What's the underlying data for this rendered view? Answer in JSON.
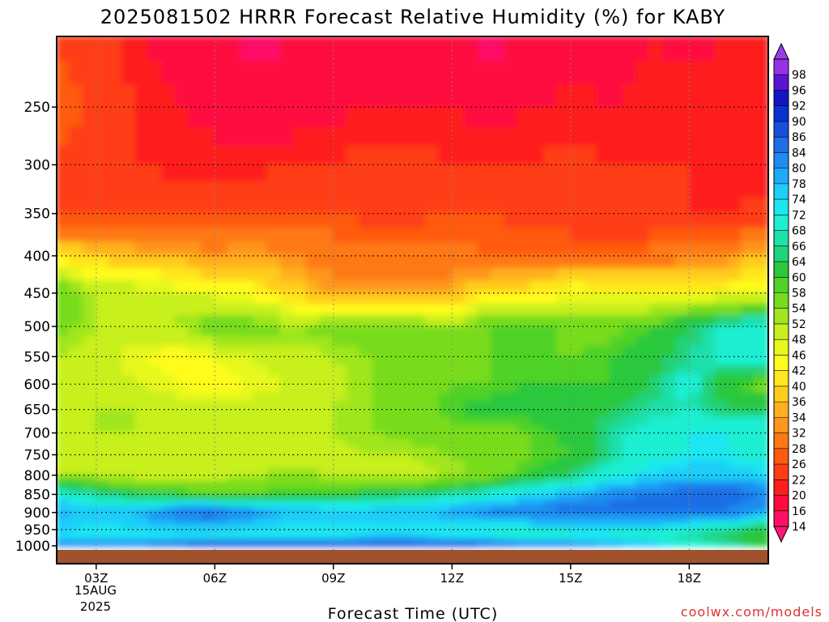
{
  "chart_data": {
    "type": "heatmap",
    "title": "2025081502 HRRR Forecast Relative Humidity (%) for KABY",
    "xlabel": "Forecast Time (UTC)",
    "ylabel": "",
    "x_ticks": [
      "03Z",
      "06Z",
      "09Z",
      "12Z",
      "15Z",
      "18Z"
    ],
    "x_hours": [
      3,
      6,
      9,
      12,
      15,
      18
    ],
    "x_range_hours": [
      2,
      20
    ],
    "date_label": [
      "15AUG",
      "2025"
    ],
    "y_ticks": [
      250,
      300,
      350,
      400,
      450,
      500,
      550,
      600,
      650,
      700,
      750,
      800,
      850,
      900,
      950,
      1000
    ],
    "y_range_hPa": [
      200,
      1013
    ],
    "y_scale": "log-pressure",
    "grid": true,
    "colorbar": {
      "levels": [
        14,
        16,
        20,
        22,
        26,
        28,
        32,
        34,
        36,
        40,
        42,
        46,
        48,
        52,
        54,
        58,
        60,
        64,
        66,
        68,
        72,
        74,
        78,
        80,
        84,
        86,
        90,
        92,
        96,
        98
      ],
      "colors": [
        "#ff1066",
        "#ff0b3f",
        "#ff1e1e",
        "#ff3c14",
        "#ff5a10",
        "#ff7814",
        "#ff961e",
        "#ffb01e",
        "#ffcc1e",
        "#ffe61e",
        "#fffc1e",
        "#e6f81e",
        "#c8f01e",
        "#a0e61e",
        "#78dc1e",
        "#50d228",
        "#2cc83c",
        "#20d278",
        "#1ee0aa",
        "#1eeed2",
        "#1ee6f0",
        "#1ecdf8",
        "#1eaaf8",
        "#1e8cf0",
        "#1e6ee6",
        "#1450dc",
        "#0a32d2",
        "#1414c8",
        "#5a14d2",
        "#9632e6"
      ]
    },
    "rows": [
      {
        "p": 200,
        "values": [
          26,
          24,
          20,
          18,
          16,
          15,
          16,
          16,
          18,
          17,
          16,
          15,
          16,
          17,
          18,
          20,
          19,
          20,
          21
        ]
      },
      {
        "p": 250,
        "values": [
          28,
          25,
          22,
          20,
          19,
          18,
          18,
          19,
          20,
          20,
          20,
          19,
          20,
          21,
          20,
          21,
          22,
          21,
          22
        ]
      },
      {
        "p": 300,
        "values": [
          26,
          23,
          22,
          21,
          21,
          21,
          22,
          22,
          23,
          23,
          22,
          22,
          22,
          23,
          22,
          22,
          22,
          21,
          21
        ]
      },
      {
        "p": 350,
        "values": [
          24,
          24,
          25,
          25,
          25,
          26,
          26,
          26,
          25,
          25,
          26,
          26,
          25,
          24,
          23,
          23,
          22,
          22,
          23
        ]
      },
      {
        "p": 400,
        "values": [
          40,
          38,
          36,
          34,
          33,
          34,
          32,
          30,
          30,
          29,
          29,
          28,
          28,
          28,
          28,
          29,
          30,
          32,
          36
        ]
      },
      {
        "p": 450,
        "values": [
          58,
          52,
          50,
          48,
          46,
          44,
          38,
          33,
          34,
          34,
          35,
          40,
          42,
          45,
          44,
          44,
          44,
          44,
          48
        ]
      },
      {
        "p": 500,
        "values": [
          56,
          52,
          52,
          52,
          58,
          56,
          54,
          56,
          58,
          56,
          54,
          58,
          60,
          56,
          56,
          60,
          64,
          70,
          70
        ]
      },
      {
        "p": 550,
        "values": [
          52,
          50,
          46,
          44,
          46,
          48,
          50,
          52,
          54,
          54,
          56,
          58,
          58,
          58,
          60,
          62,
          66,
          70,
          72
        ]
      },
      {
        "p": 600,
        "values": [
          48,
          50,
          48,
          46,
          44,
          46,
          48,
          50,
          54,
          56,
          58,
          58,
          60,
          60,
          60,
          64,
          70,
          60,
          56
        ]
      },
      {
        "p": 650,
        "values": [
          50,
          52,
          52,
          50,
          50,
          50,
          50,
          52,
          54,
          56,
          60,
          62,
          62,
          62,
          64,
          66,
          68,
          64,
          64
        ]
      },
      {
        "p": 700,
        "values": [
          50,
          52,
          52,
          50,
          48,
          48,
          50,
          52,
          54,
          56,
          56,
          56,
          58,
          62,
          66,
          70,
          72,
          72,
          72
        ]
      },
      {
        "p": 750,
        "values": [
          50,
          50,
          48,
          48,
          48,
          48,
          48,
          50,
          52,
          52,
          54,
          56,
          58,
          60,
          66,
          70,
          72,
          72,
          70
        ]
      },
      {
        "p": 800,
        "values": [
          52,
          52,
          50,
          50,
          50,
          52,
          54,
          52,
          52,
          50,
          52,
          56,
          60,
          64,
          70,
          74,
          76,
          76,
          74
        ]
      },
      {
        "p": 850,
        "values": [
          70,
          66,
          62,
          60,
          58,
          58,
          60,
          60,
          62,
          64,
          66,
          70,
          74,
          78,
          82,
          84,
          86,
          86,
          84
        ]
      },
      {
        "p": 900,
        "values": [
          80,
          76,
          78,
          84,
          86,
          82,
          78,
          76,
          76,
          78,
          80,
          82,
          84,
          86,
          86,
          86,
          86,
          84,
          80
        ]
      },
      {
        "p": 950,
        "values": [
          76,
          72,
          74,
          76,
          76,
          74,
          72,
          72,
          72,
          72,
          72,
          72,
          72,
          72,
          72,
          72,
          70,
          66,
          62
        ]
      },
      {
        "p": 975,
        "values": [
          74,
          72,
          72,
          72,
          72,
          72,
          72,
          74,
          76,
          76,
          74,
          72,
          70,
          72,
          72,
          70,
          66,
          64,
          60
        ]
      },
      {
        "p": 1000,
        "values": [
          84,
          86,
          86,
          88,
          90,
          90,
          90,
          90,
          92,
          92,
          90,
          88,
          86,
          84,
          80,
          78,
          72,
          68,
          62
        ]
      }
    ]
  },
  "credit": "coolwx.com/models",
  "colors": {
    "ground": "#a0522d",
    "credit": "#e03030",
    "frame": "#000000"
  }
}
